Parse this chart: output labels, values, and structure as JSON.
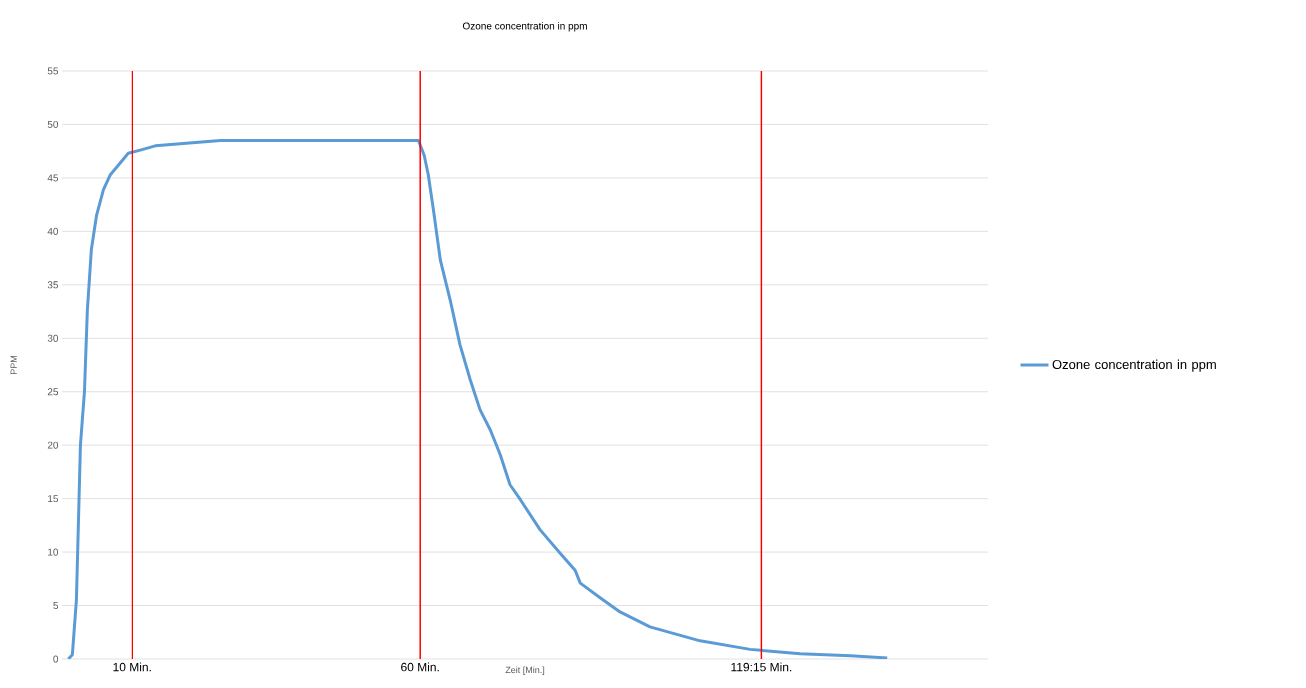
{
  "chart_data": {
    "type": "line",
    "title": "Ozone concentration in ppm",
    "xlabel": "Zeit [Min.]",
    "ylabel": "PPM",
    "xlim": [
      -2.2,
      158.6
    ],
    "ylim": [
      0,
      55
    ],
    "xticks": [
      {
        "value": 10,
        "label": "10 Min."
      },
      {
        "value": 60,
        "label": "60 Min."
      },
      {
        "value": 119.25,
        "label": "119:15 Min."
      }
    ],
    "yticks": [
      0,
      5,
      10,
      15,
      20,
      25,
      30,
      35,
      40,
      45,
      50,
      55
    ],
    "grid": "y",
    "legend": "right",
    "marker": "none",
    "line_style": "solid",
    "ref_lines": [
      {
        "axis": "x",
        "value": 10,
        "color": "#ff0000"
      },
      {
        "axis": "x",
        "value": 60,
        "color": "#ff0000"
      },
      {
        "axis": "x",
        "value": 119.25,
        "color": "#ff0000"
      }
    ],
    "series": [
      {
        "name": "Ozone concentration in ppm",
        "color": "#5b9bd5",
        "x": [
          -1.1,
          -0.4,
          0.3,
          1.0,
          1.7,
          2.2,
          2.9,
          3.8,
          5.0,
          6.2,
          7.9,
          9.3,
          11.4,
          14,
          18.3,
          25.3,
          59.7,
          60.7,
          61.4,
          62.3,
          63.5,
          65.2,
          66.9,
          68.7,
          70.4,
          72.2,
          73.9,
          75.6,
          77.4,
          80.8,
          84.3,
          86.9,
          87.8,
          91.3,
          94.7,
          99.9,
          108.6,
          117.3,
          126,
          134.7,
          141.1
        ],
        "values": [
          0,
          0.4,
          5.5,
          20,
          25,
          32.6,
          38.3,
          41.5,
          43.9,
          45.3,
          46.4,
          47.3,
          47.6,
          48.0,
          48.2,
          48.5,
          48.5,
          47.1,
          45.3,
          42,
          37.3,
          33.6,
          29.4,
          26.1,
          23.3,
          21.4,
          19.1,
          16.3,
          14.9,
          12.1,
          9.9,
          8.3,
          7.1,
          5.7,
          4.4,
          3.0,
          1.7,
          0.9,
          0.5,
          0.3,
          0.1
        ]
      }
    ]
  }
}
